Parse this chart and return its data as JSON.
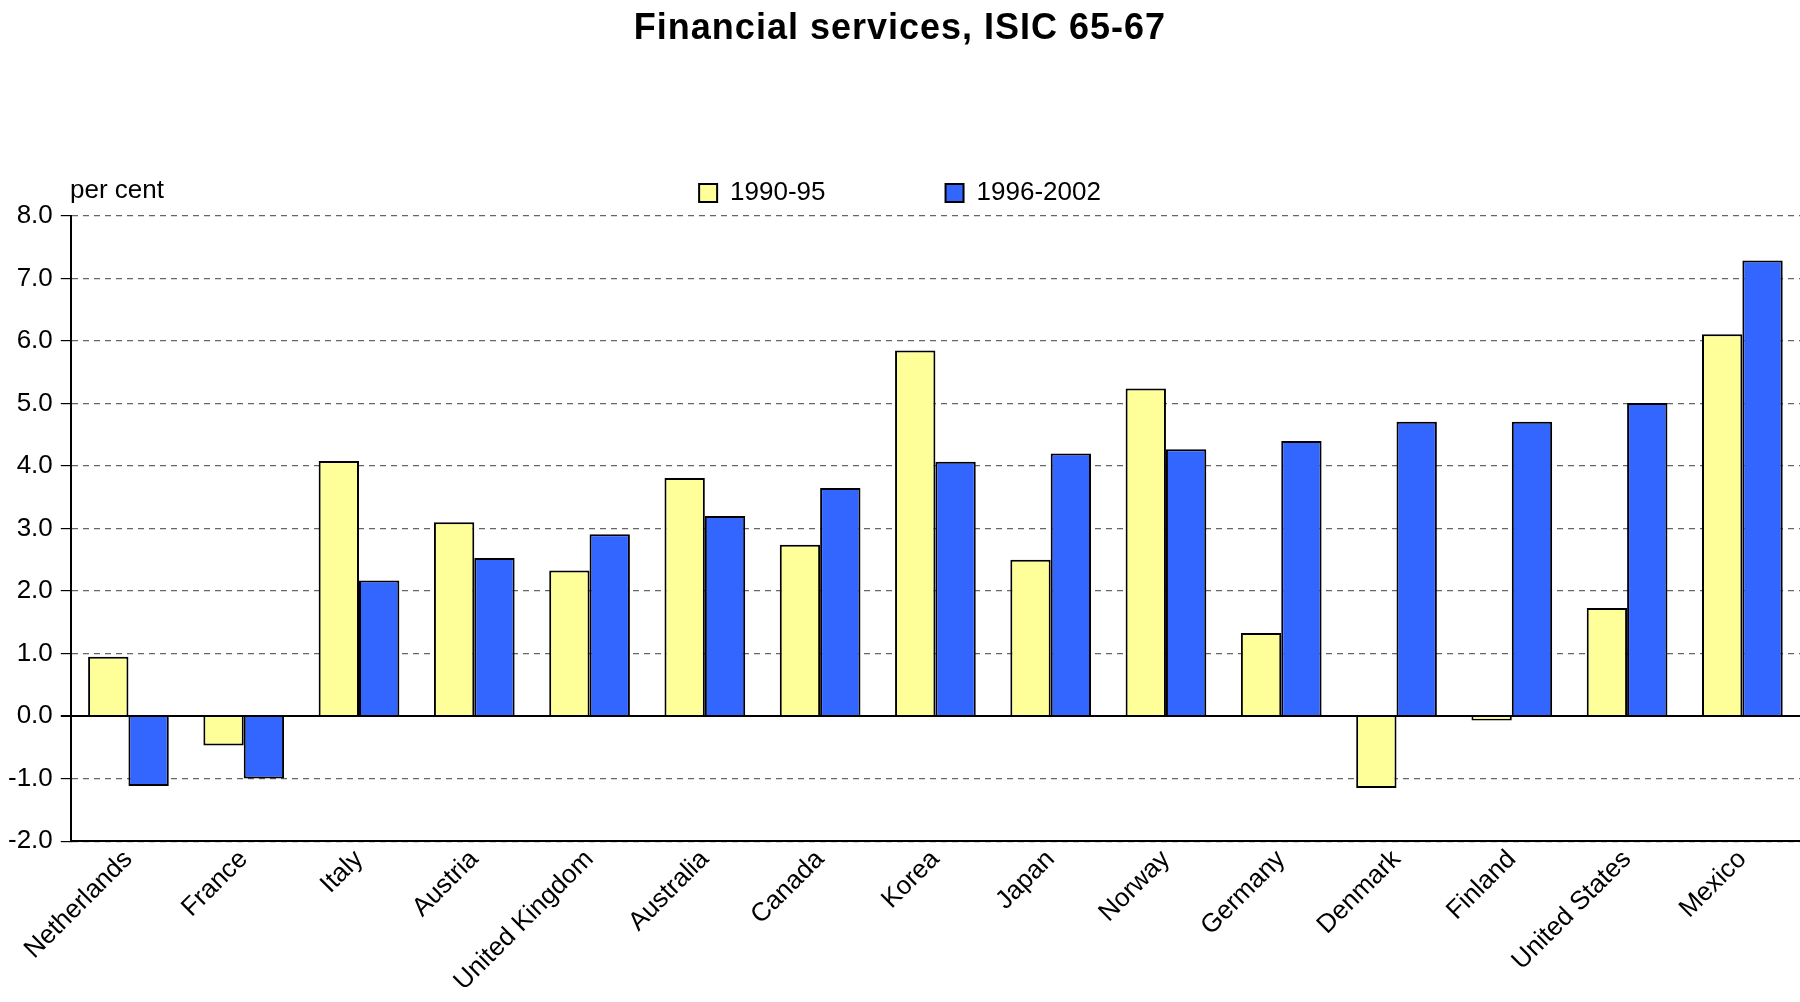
{
  "chart_data": {
    "type": "bar",
    "title": "Financial services, ISIC 65-67",
    "ylabel": "per cent",
    "categories": [
      "Netherlands",
      "France",
      "Italy",
      "Austria",
      "United Kingdom",
      "Australia",
      "Canada",
      "Korea",
      "Japan",
      "Norway",
      "Germany",
      "Denmark",
      "Finland",
      "United States",
      "Mexico"
    ],
    "series": [
      {
        "name": "1990-95",
        "color": "#ffff99",
        "values": [
          0.95,
          -0.47,
          4.08,
          3.1,
          2.33,
          3.81,
          2.74,
          5.85,
          2.5,
          5.24,
          1.33,
          -1.15,
          -0.07,
          1.73,
          6.11
        ]
      },
      {
        "name": "1996-2002",
        "color": "#3366ff",
        "values": [
          -1.12,
          -1.0,
          2.17,
          2.53,
          2.91,
          3.2,
          3.65,
          4.07,
          4.2,
          4.27,
          4.4,
          4.71,
          4.71,
          5.01,
          7.29
        ]
      }
    ],
    "ylim": [
      -2,
      8
    ],
    "yticks": [
      {
        "value": -2,
        "label": "-2.0"
      },
      {
        "value": -1,
        "label": "-1.0"
      },
      {
        "value": 0,
        "label": "0.0"
      },
      {
        "value": 1,
        "label": "1.0"
      },
      {
        "value": 2,
        "label": "2.0"
      },
      {
        "value": 3,
        "label": "3.0"
      },
      {
        "value": 4,
        "label": "4.0"
      },
      {
        "value": 5,
        "label": "5.0"
      },
      {
        "value": 6,
        "label": "6.0"
      },
      {
        "value": 7,
        "label": "7.0"
      },
      {
        "value": 8,
        "label": "8.0"
      }
    ],
    "grid": "y",
    "legend": "top"
  }
}
